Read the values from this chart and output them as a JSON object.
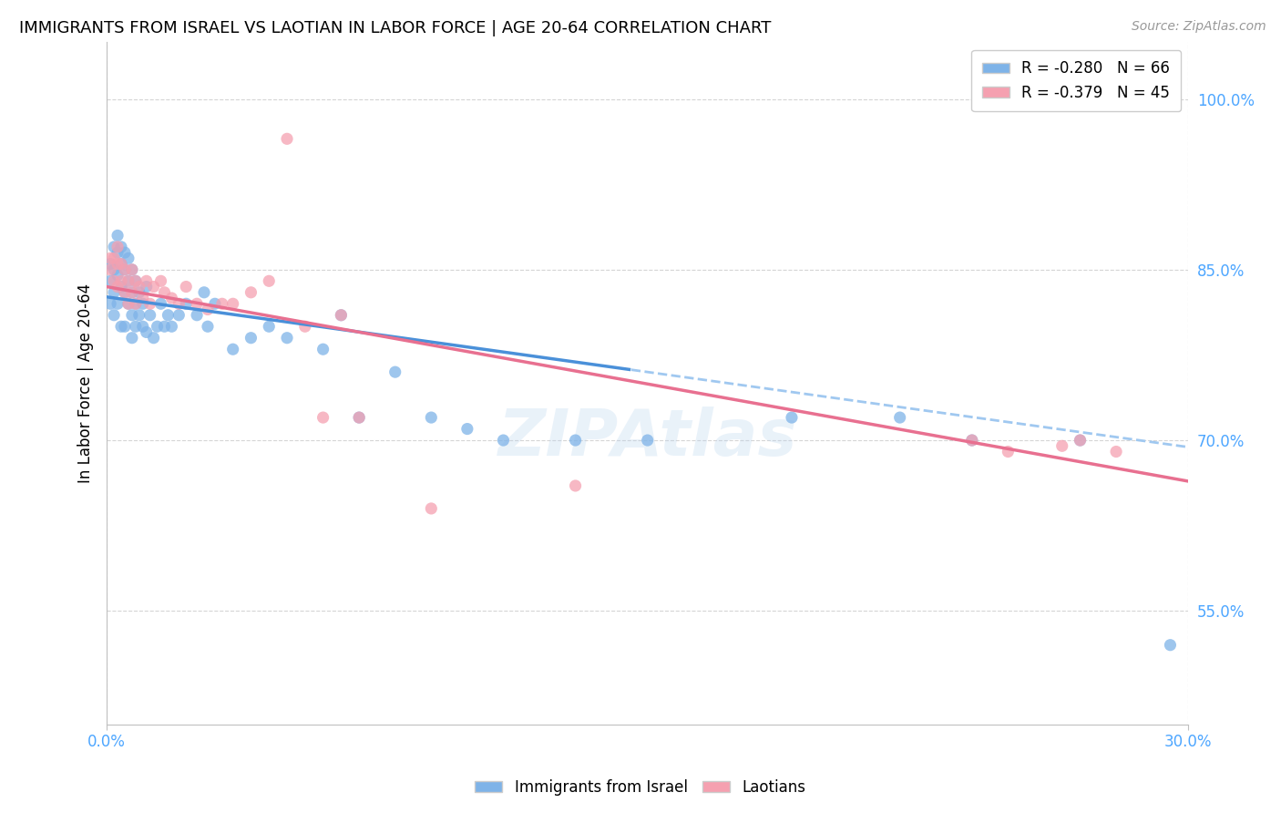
{
  "title": "IMMIGRANTS FROM ISRAEL VS LAOTIAN IN LABOR FORCE | AGE 20-64 CORRELATION CHART",
  "source": "Source: ZipAtlas.com",
  "ylabel": "In Labor Force | Age 20-64",
  "yticks_labels": [
    "55.0%",
    "70.0%",
    "85.0%",
    "100.0%"
  ],
  "ytick_vals": [
    0.55,
    0.7,
    0.85,
    1.0
  ],
  "xlim": [
    0.0,
    0.3
  ],
  "ylim": [
    0.45,
    1.05
  ],
  "legend_label1": "Immigrants from Israel",
  "legend_label2": "Laotians",
  "color_israel": "#7eb3e8",
  "color_laotian": "#f5a0b0",
  "color_israel_line": "#4a90d9",
  "color_laotian_line": "#e87090",
  "color_israel_dashed": "#a0c8f0",
  "color_axis_text": "#4da6ff",
  "israel_line_end_solid": 0.145,
  "israel_x": [
    0.001,
    0.001,
    0.001,
    0.002,
    0.002,
    0.002,
    0.002,
    0.003,
    0.003,
    0.003,
    0.003,
    0.004,
    0.004,
    0.004,
    0.004,
    0.005,
    0.005,
    0.005,
    0.005,
    0.006,
    0.006,
    0.006,
    0.007,
    0.007,
    0.007,
    0.007,
    0.008,
    0.008,
    0.008,
    0.009,
    0.009,
    0.01,
    0.01,
    0.011,
    0.011,
    0.012,
    0.013,
    0.014,
    0.015,
    0.016,
    0.017,
    0.018,
    0.02,
    0.022,
    0.025,
    0.027,
    0.028,
    0.03,
    0.035,
    0.04,
    0.045,
    0.05,
    0.06,
    0.065,
    0.07,
    0.08,
    0.09,
    0.1,
    0.11,
    0.13,
    0.15,
    0.19,
    0.22,
    0.24,
    0.27,
    0.295
  ],
  "israel_y": [
    0.82,
    0.84,
    0.855,
    0.81,
    0.83,
    0.85,
    0.87,
    0.82,
    0.845,
    0.865,
    0.88,
    0.8,
    0.835,
    0.855,
    0.87,
    0.8,
    0.83,
    0.85,
    0.865,
    0.82,
    0.84,
    0.86,
    0.79,
    0.81,
    0.83,
    0.85,
    0.8,
    0.82,
    0.84,
    0.81,
    0.83,
    0.8,
    0.82,
    0.795,
    0.835,
    0.81,
    0.79,
    0.8,
    0.82,
    0.8,
    0.81,
    0.8,
    0.81,
    0.82,
    0.81,
    0.83,
    0.8,
    0.82,
    0.78,
    0.79,
    0.8,
    0.79,
    0.78,
    0.81,
    0.72,
    0.76,
    0.72,
    0.71,
    0.7,
    0.7,
    0.7,
    0.72,
    0.72,
    0.7,
    0.7,
    0.52
  ],
  "laotian_x": [
    0.001,
    0.001,
    0.002,
    0.002,
    0.003,
    0.003,
    0.003,
    0.004,
    0.004,
    0.005,
    0.005,
    0.006,
    0.006,
    0.007,
    0.007,
    0.008,
    0.008,
    0.009,
    0.01,
    0.011,
    0.012,
    0.013,
    0.015,
    0.016,
    0.018,
    0.02,
    0.022,
    0.025,
    0.028,
    0.032,
    0.035,
    0.04,
    0.045,
    0.05,
    0.055,
    0.06,
    0.065,
    0.07,
    0.09,
    0.13,
    0.24,
    0.25,
    0.265,
    0.27,
    0.28
  ],
  "laotian_y": [
    0.85,
    0.86,
    0.84,
    0.86,
    0.835,
    0.855,
    0.87,
    0.84,
    0.855,
    0.83,
    0.85,
    0.82,
    0.84,
    0.83,
    0.85,
    0.82,
    0.84,
    0.835,
    0.825,
    0.84,
    0.82,
    0.835,
    0.84,
    0.83,
    0.825,
    0.82,
    0.835,
    0.82,
    0.815,
    0.82,
    0.82,
    0.83,
    0.84,
    0.965,
    0.8,
    0.72,
    0.81,
    0.72,
    0.64,
    0.66,
    0.7,
    0.69,
    0.695,
    0.7,
    0.69
  ]
}
